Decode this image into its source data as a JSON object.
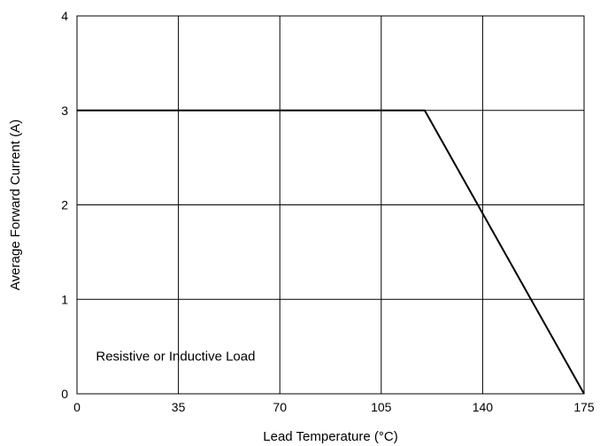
{
  "chart_data": {
    "type": "line",
    "title": "",
    "xlabel": "Lead Temperature (°C)",
    "ylabel": "Average Forward Current (A)",
    "xlim": [
      0,
      175
    ],
    "ylim": [
      0,
      4
    ],
    "x_ticks": [
      0,
      35,
      70,
      105,
      140,
      175
    ],
    "y_ticks": [
      0,
      1,
      2,
      3,
      4
    ],
    "grid": true,
    "legend": "none",
    "line_color": "#000000",
    "grid_color": "#000000",
    "series": [
      {
        "x": [
          0,
          120,
          175
        ],
        "y": [
          3,
          3,
          0
        ]
      }
    ],
    "annotations": [
      {
        "text": "Resistive or Inductive Load",
        "x": 5,
        "y": 0.4
      }
    ]
  }
}
